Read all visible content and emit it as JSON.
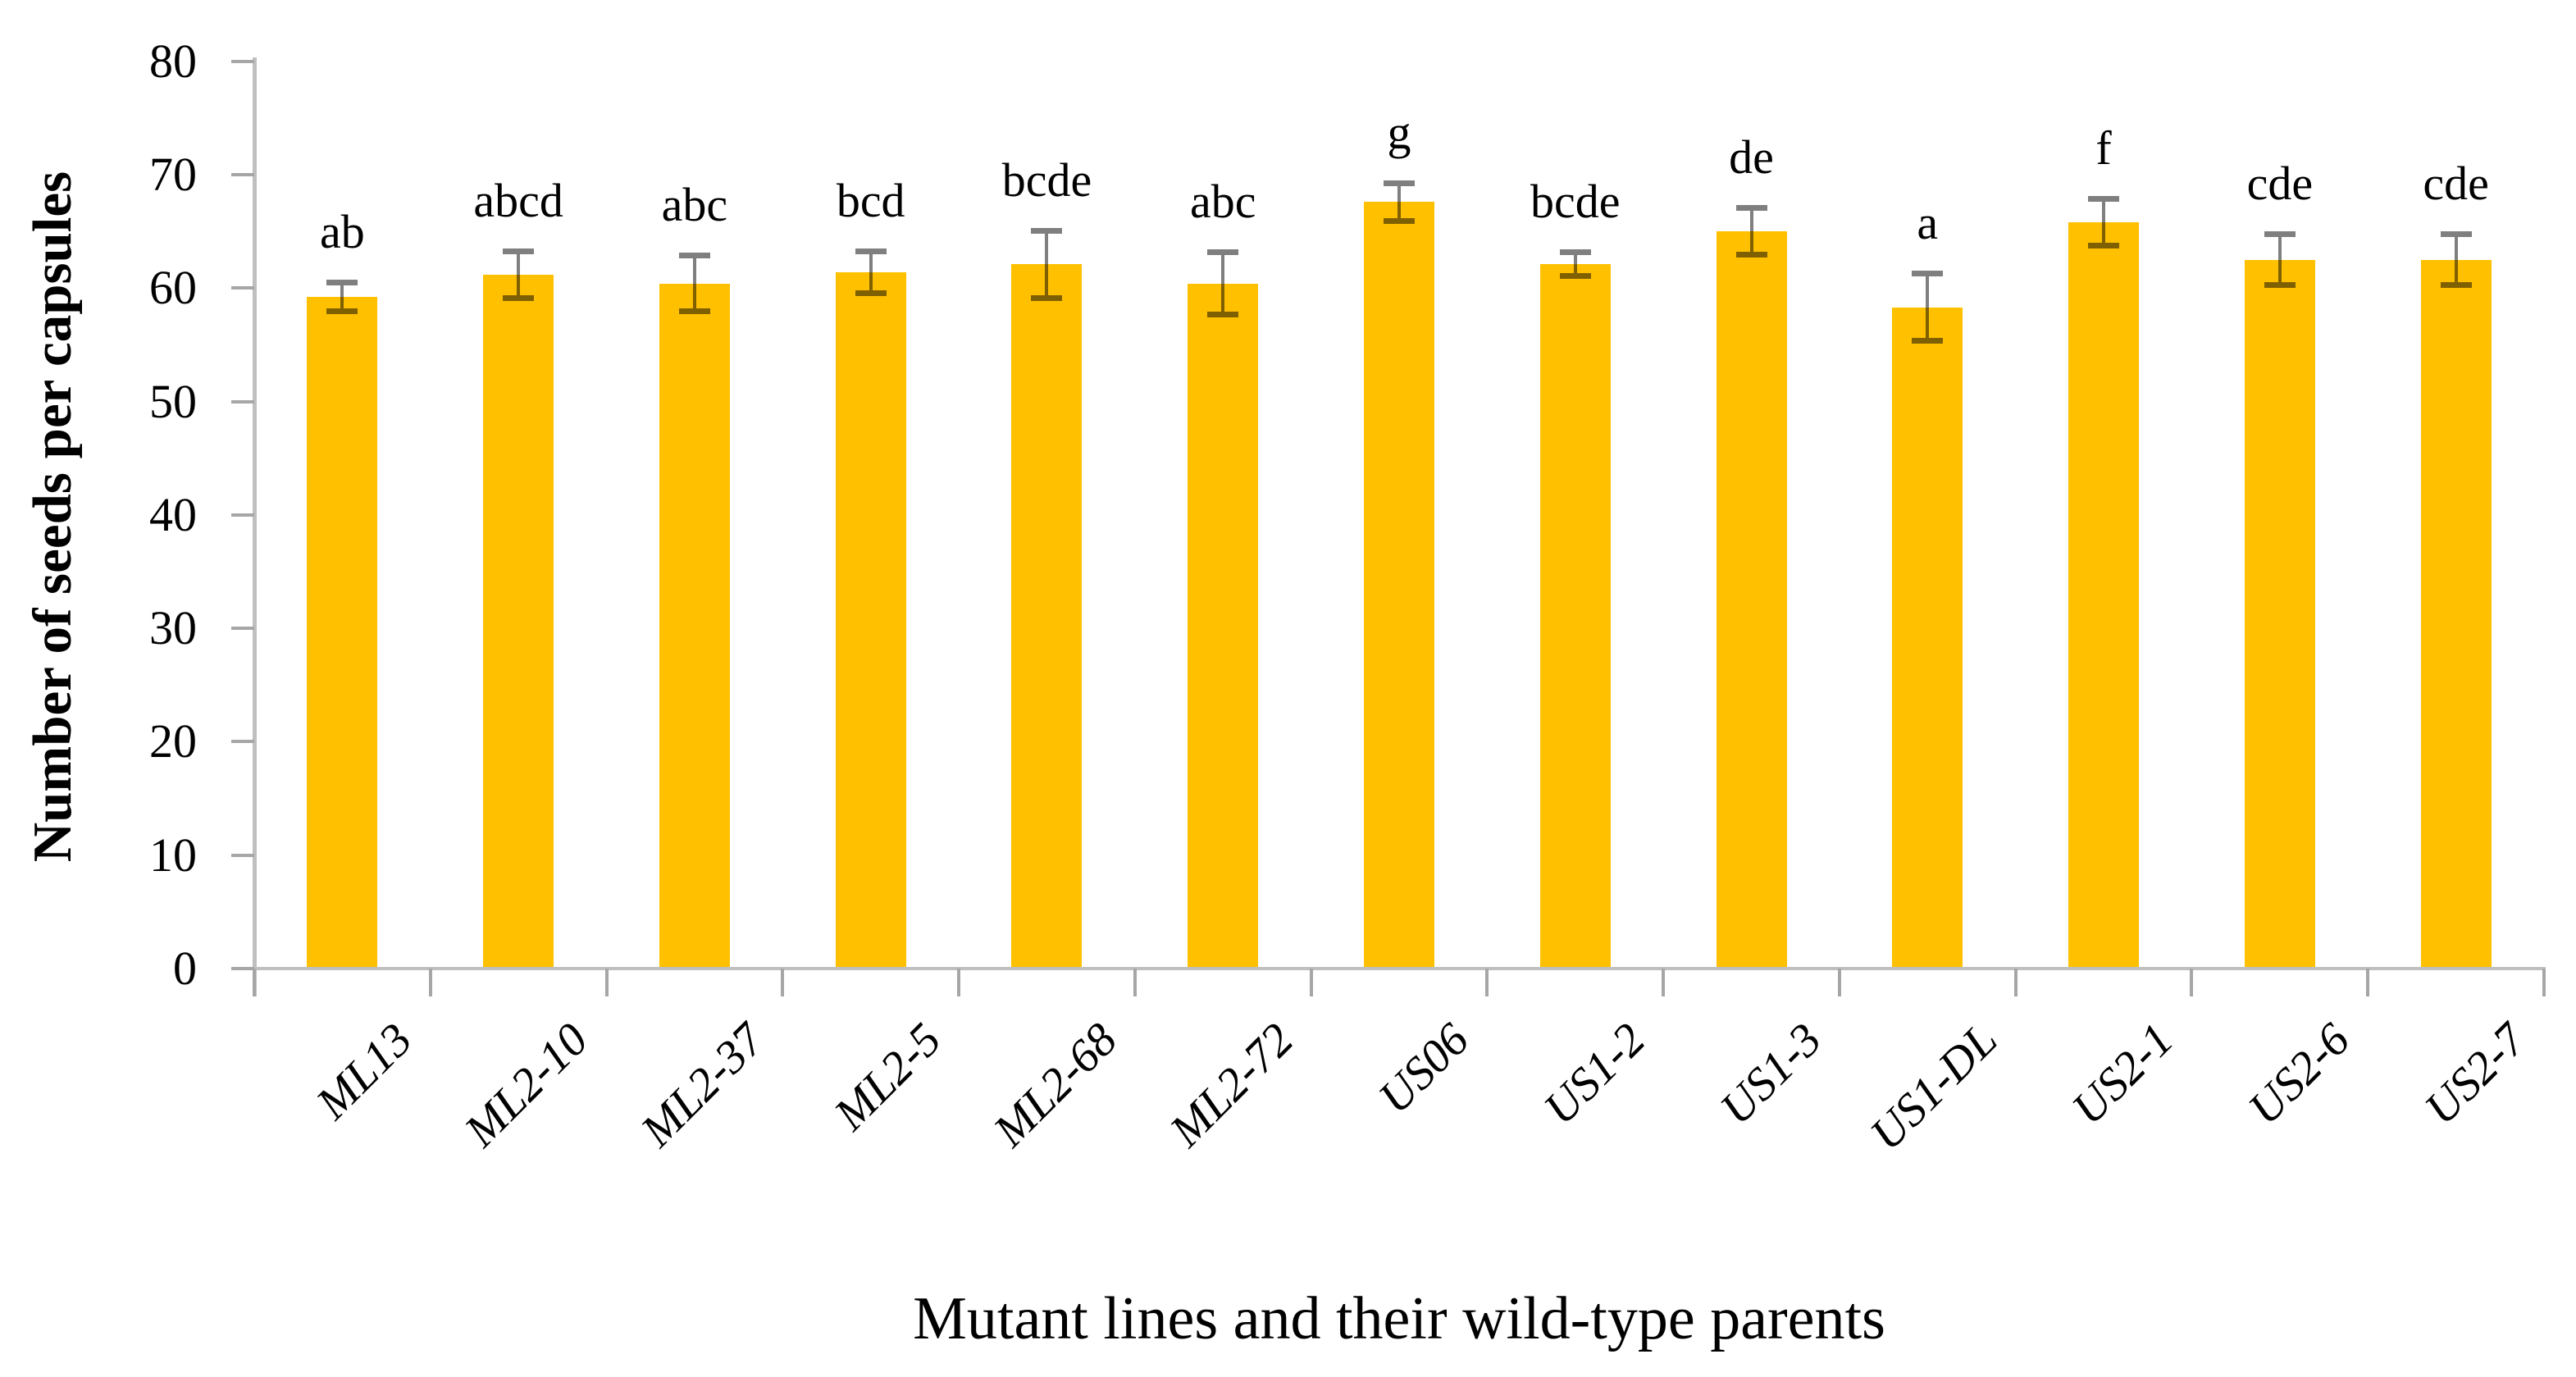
{
  "chart_data": {
    "type": "bar",
    "xlabel": "Mutant lines and their wild-type parents",
    "ylabel": "Number of seeds per capsules",
    "categories": [
      "ML13",
      "ML2-10",
      "ML2-37",
      "ML2-5",
      "ML2-68",
      "ML2-72",
      "US06",
      "US1-2",
      "US1-3",
      "US1-DL",
      "US2-1",
      "US2-6",
      "US2-7"
    ],
    "values": [
      59.2,
      61.2,
      60.4,
      61.4,
      62.1,
      60.4,
      67.6,
      62.1,
      65.0,
      58.3,
      65.8,
      62.5,
      62.5
    ],
    "error_bars": [
      1.3,
      2.1,
      2.5,
      1.9,
      3.0,
      2.8,
      1.7,
      1.1,
      2.1,
      3.0,
      2.1,
      2.3,
      2.3
    ],
    "significance_letters": [
      "ab",
      "abcd",
      "abc",
      "bcd",
      "bcde",
      "abc",
      "g",
      "bcde",
      "de",
      "a",
      "f",
      "cde",
      "cde"
    ],
    "ylim": [
      0,
      80
    ],
    "ytick_step": 10,
    "yticks": [
      0,
      10,
      20,
      30,
      40,
      50,
      60,
      70,
      80
    ],
    "grid": false,
    "legend": null,
    "x_label_rotation_deg": 45,
    "bar_color": "#FFC000",
    "error_bar_color": "rgba(0,0,0,0.5)",
    "axis_color": "#BFBFBF",
    "tick_color": "#A6A6A6",
    "text_color": "#000000",
    "background_color": "#FFFFFF"
  }
}
